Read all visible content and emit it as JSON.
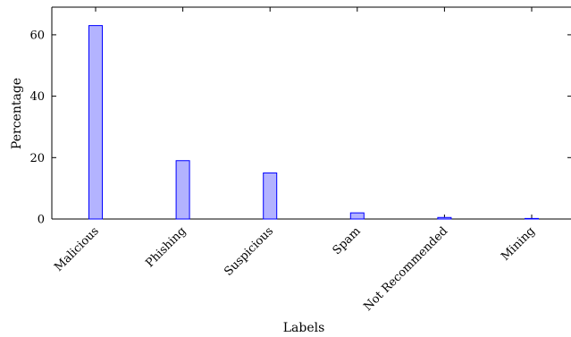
{
  "chart_data": {
    "type": "bar",
    "categories": [
      "Malicious",
      "Phishing",
      "Suspicious",
      "Spam",
      "Not Recommended",
      "Mining"
    ],
    "values": [
      63,
      19,
      15,
      2,
      0.5,
      0.1
    ],
    "xlabel": "Labels",
    "ylabel": "Percentage",
    "ylim": [
      0,
      69
    ],
    "yticks": [
      0,
      20,
      40,
      60
    ],
    "grid": false,
    "colors": {
      "bar_fill": "#b3b3ff",
      "bar_stroke": "#0000ff",
      "axis": "#000000"
    }
  }
}
